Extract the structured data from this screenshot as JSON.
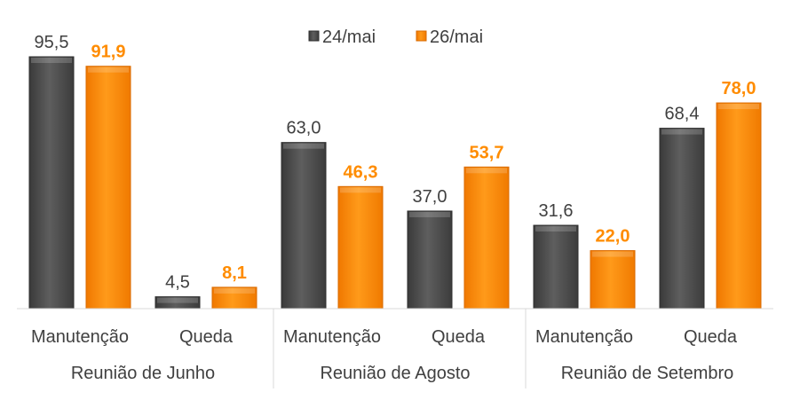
{
  "chart_data": {
    "type": "bar",
    "groups": [
      {
        "label": "Reunião de Junho",
        "categories": [
          "Manutenção",
          "Queda"
        ]
      },
      {
        "label": "Reunião de Agosto",
        "categories": [
          "Manutenção",
          "Queda"
        ]
      },
      {
        "label": "Reunião de Setembro",
        "categories": [
          "Manutenção",
          "Queda"
        ]
      }
    ],
    "series": [
      {
        "name": "24/mai",
        "color": "#555555",
        "values": [
          95.5,
          4.5,
          63.0,
          37.0,
          31.6,
          68.4
        ],
        "labels": [
          "95,5",
          "4,5",
          "63,0",
          "37,0",
          "31,6",
          "68,4"
        ]
      },
      {
        "name": "26/mai",
        "color": "#ff8c00",
        "values": [
          91.9,
          8.1,
          46.3,
          53.7,
          22.0,
          78.0
        ],
        "labels": [
          "91,9",
          "8,1",
          "46,3",
          "53,7",
          "22,0",
          "78,0"
        ]
      }
    ],
    "ylim": [
      0,
      100
    ],
    "legend": "top-center",
    "grid": false
  }
}
